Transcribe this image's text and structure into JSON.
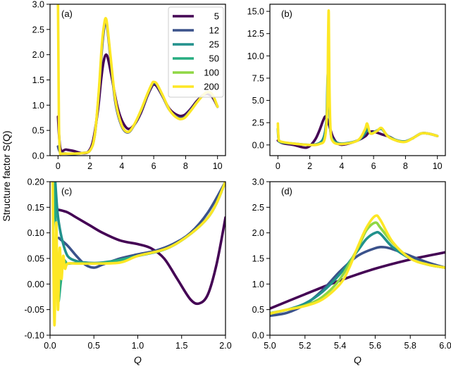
{
  "chart_data": {
    "type": "line",
    "shared_ylabel": "Structure factor S(Q)",
    "colors": {
      "5": "#440154",
      "12": "#3b528b",
      "25": "#21918c",
      "50": "#27ad81",
      "100": "#8fd744",
      "200": "#fde725"
    },
    "legend": {
      "placement": "top-right of panel (a)",
      "entries": [
        "5",
        "12",
        "25",
        "50",
        "100",
        "200"
      ]
    },
    "panels": [
      {
        "id": "a",
        "label": "(a)",
        "xlabel": "",
        "xlim": [
          -0.5,
          10.5
        ],
        "ylim": [
          0,
          3.0
        ],
        "xticks": [
          0,
          2,
          4,
          6,
          8,
          10
        ],
        "xticklabels": [
          "0",
          "2",
          "4",
          "6",
          "8",
          "10"
        ],
        "yticks": [
          0,
          0.5,
          1.0,
          1.5,
          2.0,
          2.5,
          3.0
        ],
        "yticklabels": [
          "0.0",
          "0.5",
          "1.0",
          "1.5",
          "2.0",
          "2.5",
          "3.0"
        ],
        "series": [
          {
            "name": "5",
            "x": [
              0.0,
              0.15,
              0.5,
              1.0,
              1.5,
              1.9,
              2.2,
              2.5,
              2.7,
              2.85,
              3.0,
              3.15,
              3.4,
              3.7,
              4.0,
              4.4,
              4.8,
              5.2,
              5.6,
              5.9,
              6.0,
              6.2,
              6.6,
              7.0,
              7.5,
              7.9,
              8.3,
              8.7,
              9.1,
              9.4,
              9.7,
              10.0
            ],
            "y": [
              0.77,
              0.14,
              0.12,
              0.09,
              0.05,
              0.08,
              0.3,
              0.9,
              1.5,
              1.85,
              2.0,
              1.9,
              1.5,
              1.0,
              0.7,
              0.53,
              0.62,
              0.85,
              1.18,
              1.38,
              1.41,
              1.37,
              1.15,
              0.92,
              0.8,
              0.8,
              0.92,
              1.08,
              1.2,
              1.22,
              1.15,
              0.97
            ]
          },
          {
            "name": "12",
            "x": [
              0.0,
              0.15,
              0.5,
              1.0,
              1.5,
              2.0,
              2.3,
              2.55,
              2.75,
              2.9,
              3.0,
              3.1,
              3.3,
              3.6,
              4.0,
              4.4,
              4.8,
              5.2,
              5.6,
              5.9,
              6.0,
              6.2,
              6.6,
              7.0,
              7.5,
              7.9,
              8.3,
              8.7,
              9.1,
              9.4,
              9.7,
              10.0
            ],
            "y": [
              0.18,
              0.06,
              0.04,
              0.03,
              0.05,
              0.1,
              0.4,
              1.2,
              2.1,
              2.55,
              2.65,
              2.5,
              1.9,
              1.05,
              0.58,
              0.46,
              0.62,
              0.88,
              1.2,
              1.4,
              1.43,
              1.4,
              1.15,
              0.9,
              0.76,
              0.76,
              0.9,
              1.06,
              1.2,
              1.25,
              1.18,
              0.97
            ]
          },
          {
            "name": "200",
            "x": [
              0.0,
              0.02,
              0.06,
              0.12,
              0.2,
              0.5,
              1.0,
              1.5,
              2.0,
              2.3,
              2.55,
              2.75,
              2.9,
              3.0,
              3.1,
              3.3,
              3.6,
              4.0,
              4.4,
              4.8,
              5.2,
              5.6,
              5.9,
              6.0,
              6.2,
              6.6,
              7.0,
              7.5,
              7.9,
              8.3,
              8.7,
              9.1,
              9.4,
              9.7,
              10.0
            ],
            "y": [
              3.0,
              2.2,
              0.6,
              0.08,
              0.04,
              0.04,
              0.04,
              0.05,
              0.1,
              0.4,
              1.25,
              2.2,
              2.62,
              2.72,
              2.55,
              1.95,
              1.1,
              0.6,
              0.47,
              0.63,
              0.9,
              1.22,
              1.43,
              1.46,
              1.42,
              1.17,
              0.9,
              0.74,
              0.74,
              0.88,
              1.05,
              1.2,
              1.26,
              1.2,
              0.97
            ]
          }
        ]
      },
      {
        "id": "b",
        "label": "(b)",
        "xlabel": "",
        "xlim": [
          -0.5,
          10.5
        ],
        "ylim": [
          -1.2,
          15.8
        ],
        "xticks": [
          0,
          2,
          4,
          6,
          8,
          10
        ],
        "xticklabels": [
          "0",
          "2",
          "4",
          "6",
          "8",
          "10"
        ],
        "yticks": [
          0,
          2.5,
          5.0,
          7.5,
          10.0,
          12.5,
          15.0
        ],
        "yticklabels": [
          "0.0",
          "2.5",
          "5.0",
          "7.5",
          "10.0",
          "12.5",
          "15.0"
        ],
        "series": [
          {
            "name": "5",
            "x": [
              0.0,
              0.3,
              1.0,
              1.8,
              2.3,
              2.6,
              2.85,
              3.0,
              3.15,
              3.45,
              3.8,
              4.3,
              5.0,
              5.5,
              5.7,
              6.0,
              6.5,
              7.0,
              7.5,
              8.0,
              8.5,
              9.0,
              9.5,
              10.0
            ],
            "y": [
              0.5,
              0.2,
              0.0,
              -0.3,
              0.5,
              1.6,
              2.8,
              3.2,
              2.6,
              0.9,
              0.1,
              0.1,
              0.5,
              1.0,
              1.4,
              1.5,
              1.2,
              0.9,
              0.45,
              0.4,
              0.8,
              1.3,
              1.25,
              1.0
            ]
          },
          {
            "name": "25",
            "x": [
              0.0,
              0.05,
              0.2,
              1.0,
              2.0,
              2.6,
              2.9,
              3.05,
              3.12,
              3.17,
              3.22,
              3.3,
              3.5,
              4.0,
              5.0,
              5.5,
              5.6,
              5.8,
              6.2,
              6.5,
              6.9,
              7.5,
              8.0,
              8.5,
              9.0,
              9.5,
              10.0
            ],
            "y": [
              1.8,
              0.6,
              0.3,
              0.15,
              0.0,
              0.2,
              1.0,
              3.0,
              7.5,
              8.0,
              5.0,
              1.5,
              0.5,
              0.15,
              0.5,
              1.4,
              2.0,
              1.3,
              1.6,
              1.8,
              1.0,
              0.5,
              0.4,
              0.8,
              1.3,
              1.25,
              1.0
            ]
          },
          {
            "name": "200",
            "x": [
              0.0,
              0.04,
              0.15,
              1.0,
              2.0,
              2.6,
              2.95,
              3.1,
              3.15,
              3.19,
              3.23,
              3.3,
              3.45,
              4.0,
              5.0,
              5.45,
              5.6,
              5.8,
              6.2,
              6.5,
              6.9,
              7.5,
              8.0,
              8.5,
              9.0,
              9.5,
              10.0
            ],
            "y": [
              2.4,
              0.9,
              0.4,
              0.15,
              0.0,
              0.1,
              0.8,
              4.5,
              12.0,
              14.9,
              7.0,
              1.8,
              0.4,
              0.1,
              0.5,
              1.7,
              2.4,
              1.3,
              1.55,
              1.9,
              0.95,
              0.45,
              0.35,
              0.8,
              1.3,
              1.25,
              1.0
            ]
          }
        ]
      },
      {
        "id": "c",
        "label": "(c)",
        "xlabel": "Q",
        "xlim": [
          0.0,
          2.0
        ],
        "ylim": [
          -0.1,
          0.2
        ],
        "xticks": [
          0.0,
          0.5,
          1.0,
          1.5,
          2.0
        ],
        "xticklabels": [
          "0.0",
          "0.5",
          "1.0",
          "1.5",
          "2.0"
        ],
        "yticks": [
          -0.1,
          -0.05,
          0.0,
          0.05,
          0.1,
          0.15,
          0.2
        ],
        "yticklabels": [
          "-0.10",
          "-0.05",
          "0.00",
          "0.05",
          "0.10",
          "0.15",
          "0.20"
        ],
        "series": [
          {
            "name": "5",
            "x": [
              0.1,
              0.2,
              0.3,
              0.45,
              0.6,
              0.8,
              1.0,
              1.15,
              1.3,
              1.45,
              1.6,
              1.7,
              1.8,
              1.9,
              2.0
            ],
            "y": [
              0.145,
              0.14,
              0.13,
              0.115,
              0.1,
              0.085,
              0.078,
              0.07,
              0.05,
              0.01,
              -0.03,
              -0.038,
              -0.02,
              0.04,
              0.13
            ]
          },
          {
            "name": "12",
            "x": [
              0.1,
              0.2,
              0.3,
              0.4,
              0.5,
              0.6,
              0.8,
              1.0,
              1.2,
              1.4,
              1.6,
              1.8,
              2.0
            ],
            "y": [
              0.09,
              0.075,
              0.055,
              0.038,
              0.032,
              0.038,
              0.05,
              0.058,
              0.065,
              0.078,
              0.1,
              0.14,
              0.2
            ]
          },
          {
            "name": "25",
            "x": [
              0.06,
              0.08,
              0.1,
              0.14,
              0.2,
              0.3,
              0.4,
              0.6,
              1.0,
              1.4,
              1.8,
              2.0
            ],
            "y": [
              0.2,
              0.15,
              0.12,
              0.085,
              0.055,
              0.045,
              0.042,
              0.042,
              0.055,
              0.075,
              0.13,
              0.2
            ]
          },
          {
            "name": "50",
            "x": [
              0.04,
              0.07,
              0.09,
              0.12,
              0.15,
              0.2,
              0.3,
              0.6,
              1.0,
              1.4,
              1.8,
              2.0
            ],
            "y": [
              0.2,
              0.1,
              -0.03,
              0.0,
              0.045,
              0.04,
              0.041,
              0.041,
              0.055,
              0.075,
              0.13,
              0.2
            ]
          },
          {
            "name": "200",
            "x": [
              0.03,
              0.05,
              0.07,
              0.09,
              0.11,
              0.13,
              0.15,
              0.17,
              0.2,
              0.3,
              0.5,
              0.8,
              1.0,
              1.4,
              1.8,
              2.0
            ],
            "y": [
              0.2,
              -0.08,
              0.12,
              -0.05,
              0.07,
              0.01,
              0.055,
              0.03,
              0.04,
              0.04,
              0.04,
              0.042,
              0.055,
              0.075,
              0.13,
              0.2
            ]
          }
        ]
      },
      {
        "id": "d",
        "label": "(d)",
        "xlabel": "Q",
        "xlim": [
          5.0,
          6.0
        ],
        "ylim": [
          0.0,
          3.0
        ],
        "xticks": [
          5.0,
          5.2,
          5.4,
          5.6,
          5.8,
          6.0
        ],
        "xticklabels": [
          "5.0",
          "5.2",
          "5.4",
          "5.6",
          "5.8",
          "6.0"
        ],
        "yticks": [
          0.0,
          0.5,
          1.0,
          1.5,
          2.0,
          2.5,
          3.0
        ],
        "yticklabels": [
          "0.0",
          "0.5",
          "1.0",
          "1.5",
          "2.0",
          "2.5",
          "3.0"
        ],
        "series": [
          {
            "name": "5",
            "x": [
              5.0,
              5.2,
              5.4,
              5.6,
              5.8,
              6.0
            ],
            "y": [
              0.52,
              0.8,
              1.07,
              1.3,
              1.48,
              1.62
            ]
          },
          {
            "name": "12",
            "x": [
              5.0,
              5.1,
              5.2,
              5.3,
              5.4,
              5.5,
              5.6,
              5.65,
              5.7,
              5.8,
              5.9,
              6.0
            ],
            "y": [
              0.38,
              0.44,
              0.6,
              0.88,
              1.25,
              1.55,
              1.7,
              1.72,
              1.68,
              1.55,
              1.42,
              1.32
            ]
          },
          {
            "name": "25",
            "x": [
              5.0,
              5.1,
              5.2,
              5.3,
              5.4,
              5.5,
              5.55,
              5.6,
              5.63,
              5.7,
              5.8,
              5.9,
              6.0
            ],
            "y": [
              0.42,
              0.5,
              0.62,
              0.85,
              1.2,
              1.65,
              1.88,
              2.0,
              1.98,
              1.72,
              1.5,
              1.38,
              1.32
            ]
          },
          {
            "name": "100",
            "x": [
              5.0,
              5.1,
              5.2,
              5.3,
              5.4,
              5.5,
              5.55,
              5.6,
              5.63,
              5.7,
              5.8,
              5.9,
              6.0
            ],
            "y": [
              0.43,
              0.5,
              0.58,
              0.75,
              1.1,
              1.7,
              2.05,
              2.2,
              2.1,
              1.8,
              1.5,
              1.38,
              1.32
            ]
          },
          {
            "name": "200",
            "x": [
              5.0,
              5.1,
              5.2,
              5.3,
              5.4,
              5.45,
              5.5,
              5.55,
              5.6,
              5.63,
              5.7,
              5.8,
              5.9,
              6.0
            ],
            "y": [
              0.42,
              0.5,
              0.57,
              0.7,
              1.0,
              1.3,
              1.72,
              2.1,
              2.33,
              2.25,
              1.82,
              1.5,
              1.38,
              1.32
            ]
          }
        ]
      }
    ]
  }
}
